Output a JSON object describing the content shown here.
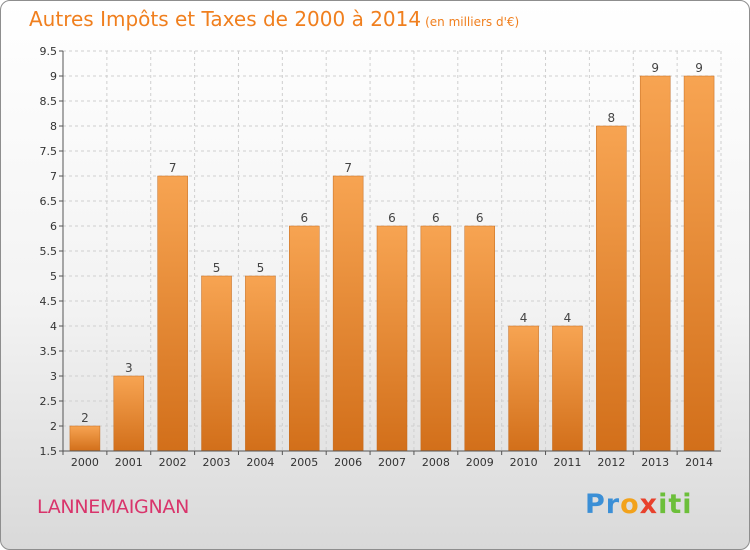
{
  "header": {
    "title": "Autres Impôts et Taxes de 2000 à 2014",
    "unit_note": "(en milliers d'€)"
  },
  "footer": {
    "location": "LANNEMAIGNAN",
    "brand": [
      "Pr",
      "o",
      "x",
      "iti"
    ]
  },
  "colors": {
    "bar_top": "#f7a452",
    "bar_bottom": "#d26f1a",
    "title": "#f07f1e",
    "location": "#d9346b"
  },
  "chart_data": {
    "type": "bar",
    "title": "Autres Impôts et Taxes de 2000 à 2014",
    "categories": [
      "2000",
      "2001",
      "2002",
      "2003",
      "2004",
      "2005",
      "2006",
      "2007",
      "2008",
      "2009",
      "2010",
      "2011",
      "2012",
      "2013",
      "2014"
    ],
    "values": [
      2,
      3,
      7,
      5,
      5,
      6,
      7,
      6,
      6,
      6,
      4,
      4,
      8,
      9,
      9
    ],
    "ylim": [
      1.5,
      9.5
    ],
    "yticks": [
      "1.5",
      "2",
      "2.5",
      "3",
      "3.5",
      "4",
      "4.5",
      "5",
      "5.5",
      "6",
      "6.5",
      "7",
      "7.5",
      "8",
      "8.5",
      "9",
      "9.5"
    ],
    "grid": true,
    "xlabel": "",
    "ylabel": ""
  }
}
